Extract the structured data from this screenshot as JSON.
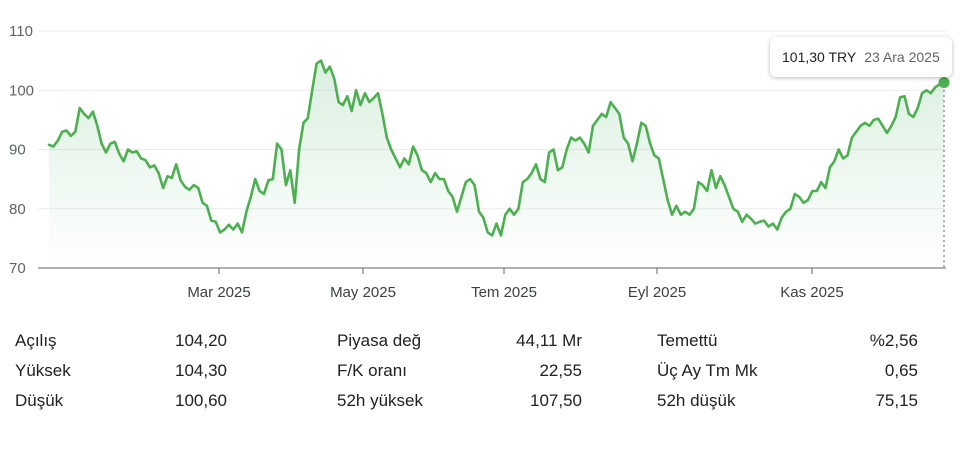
{
  "tooltip": {
    "price": "101,30 TRY",
    "date": "23 Ara 2025"
  },
  "chart_data": {
    "type": "line",
    "title": "",
    "xlabel": "",
    "ylabel": "",
    "ylim": [
      70,
      110
    ],
    "y_ticks": [
      "70",
      "80",
      "90",
      "100",
      "110"
    ],
    "x_ticks": [
      "Mar 2025",
      "May 2025",
      "Tem 2025",
      "Eyl 2025",
      "Kas 2025"
    ],
    "grid": true,
    "line_color": "#4caf50",
    "fill_color": "#e6f4ea",
    "series": [
      {
        "values": [
          90.8,
          90.5,
          91.5,
          93,
          93.2,
          92.3,
          93,
          97,
          96,
          95.3,
          96.4,
          94,
          91,
          89.5,
          91,
          91.3,
          89.3,
          88,
          90,
          89.5,
          89.7,
          88.5,
          88.2,
          87,
          87.3,
          86,
          83.5,
          85.5,
          85.2,
          87.5,
          84.8,
          83.7,
          83.2,
          84,
          83.5,
          81,
          80.5,
          78,
          77.8,
          76,
          76.5,
          77.3,
          76.5,
          77.5,
          76,
          79.5,
          82,
          85,
          83,
          82.5,
          84.8,
          85,
          91,
          90,
          84,
          86.5,
          81,
          90,
          94.5,
          95.3,
          100,
          104.5,
          105,
          103,
          104,
          102,
          98,
          97.5,
          99,
          96.5,
          100,
          97.5,
          99.5,
          98,
          98.7,
          99.5,
          96,
          92,
          90,
          88.5,
          87,
          88.5,
          87.5,
          90.5,
          89,
          86.5,
          86,
          84.5,
          86,
          85,
          85,
          83,
          82,
          79.5,
          82,
          84.5,
          85,
          84,
          79.5,
          78.5,
          76,
          75.5,
          77.5,
          75.5,
          79,
          80,
          79,
          80,
          84.5,
          85,
          86,
          87.5,
          85,
          84.5,
          89.5,
          90,
          86.5,
          87,
          90,
          92,
          91.5,
          92,
          91,
          89.5,
          94,
          95,
          96,
          95.5,
          98,
          97,
          96,
          92,
          91,
          88,
          91,
          94.5,
          94,
          91,
          89,
          88.5,
          85,
          81.5,
          79,
          80.5,
          79,
          79.5,
          79,
          80,
          84.5,
          84,
          83,
          86.5,
          83.5,
          85.5,
          84,
          82,
          80,
          79.5,
          77.8,
          79,
          78.3,
          77.5,
          77.8,
          78,
          77,
          77.5,
          76.5,
          78.5,
          79.5,
          80,
          82.5,
          82,
          81,
          81.5,
          83,
          83,
          84.5,
          83.5,
          87,
          88,
          90,
          88.5,
          89,
          92,
          93,
          94,
          94.5,
          94,
          95,
          95.2,
          94,
          92.8,
          94,
          95.5,
          98.8,
          99,
          96,
          95.5,
          97,
          99.5,
          100,
          99.5,
          100.5,
          101,
          101.3
        ]
      }
    ]
  },
  "stats": [
    [
      {
        "label": "Açılış",
        "value": "104,20"
      },
      {
        "label": "Piyasa değ",
        "value": "44,11 Mr"
      },
      {
        "label": "Temettü",
        "value": "%2,56"
      }
    ],
    [
      {
        "label": "Yüksek",
        "value": "104,30"
      },
      {
        "label": "F/K oranı",
        "value": "22,55"
      },
      {
        "label": "Üç Ay Tm Mk",
        "value": "0,65"
      }
    ],
    [
      {
        "label": "Düşük",
        "value": "100,60"
      },
      {
        "label": "52h yüksek",
        "value": "107,50"
      },
      {
        "label": "52h düşük",
        "value": "75,15"
      }
    ]
  ]
}
